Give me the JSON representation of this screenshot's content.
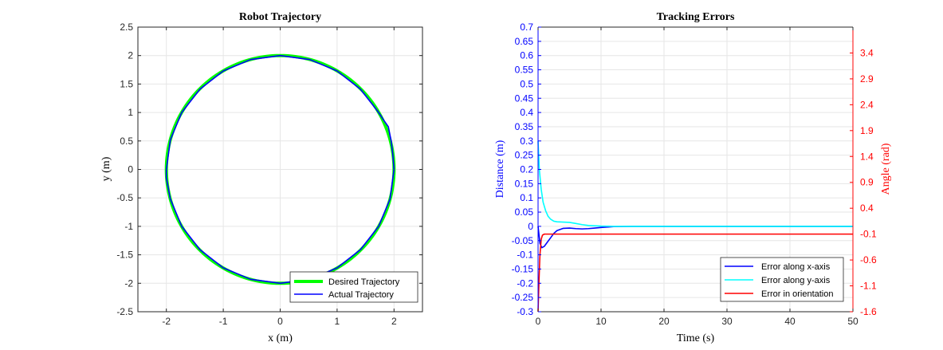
{
  "chart_data": [
    {
      "type": "line",
      "title": "Robot Trajectory",
      "xlabel": "x (m)",
      "ylabel": "y (m)",
      "xlim": [
        -2.5,
        2.5
      ],
      "ylim": [
        -2.5,
        2.5
      ],
      "xticks": [
        -2,
        -1,
        0,
        1,
        2
      ],
      "yticks": [
        -2.5,
        -2,
        -1.5,
        -1,
        -0.5,
        0,
        0.5,
        1,
        1.5,
        2,
        2.5
      ],
      "grid": true,
      "legend_position": "bottom-right",
      "series": [
        {
          "name": "Desired Trajectory",
          "color": "#00ff00",
          "shape": "circle",
          "center": [
            0,
            0
          ],
          "radius": 2
        },
        {
          "name": "Actual Trajectory",
          "color": "#0000ff",
          "x": [
            2.0,
            1.98,
            1.95,
            1.92,
            1.9,
            1.83,
            1.73,
            1.41,
            1.0,
            0.52,
            0.0,
            -0.52,
            -1.0,
            -1.41,
            -1.73,
            -1.93,
            -2.0,
            -2.0,
            -1.93,
            -1.73,
            -1.41,
            -1.0,
            -0.52,
            0.0,
            0.52,
            1.0,
            1.41,
            1.73,
            1.93,
            2.0
          ],
          "y": [
            0.0,
            0.25,
            0.5,
            0.65,
            0.75,
            0.85,
            1.0,
            1.41,
            1.73,
            1.93,
            2.0,
            1.93,
            1.73,
            1.41,
            1.0,
            0.52,
            0.0,
            -0.15,
            -0.52,
            -1.0,
            -1.41,
            -1.73,
            -1.93,
            -2.0,
            -1.93,
            -1.73,
            -1.41,
            -1.0,
            -0.52,
            0.0
          ]
        }
      ]
    },
    {
      "type": "line",
      "title": "Tracking Errors",
      "xlabel": "Time (s)",
      "ylabel": "Distance (m)",
      "ylabel_right": "Angle (rad)",
      "xlim": [
        0,
        50
      ],
      "ylim": [
        -0.3,
        0.7
      ],
      "ylim_right": [
        -1.6,
        3.9
      ],
      "xticks": [
        0,
        10,
        20,
        30,
        40,
        50
      ],
      "yticks": [
        -0.3,
        -0.25,
        -0.2,
        -0.15,
        -0.1,
        -0.05,
        0,
        0.05,
        0.1,
        0.15,
        0.2,
        0.25,
        0.3,
        0.35,
        0.4,
        0.45,
        0.5,
        0.55,
        0.6,
        0.65,
        0.7
      ],
      "yticks_right": [
        -1.6,
        -1.1,
        -0.6,
        -0.1,
        0.4,
        0.9,
        1.4,
        1.9,
        2.4,
        2.9,
        3.4
      ],
      "left_axis_color": "#0000ff",
      "right_axis_color": "#ff0000",
      "grid": true,
      "legend_position": "bottom-right",
      "series": [
        {
          "name": "Error along x-axis",
          "color": "#0000ff",
          "axis": "left",
          "x": [
            0,
            0.3,
            0.6,
            1,
            1.5,
            2,
            2.5,
            3,
            4,
            5,
            6,
            7,
            8,
            9,
            10,
            12,
            15,
            20,
            30,
            40,
            50
          ],
          "y": [
            0,
            -0.06,
            -0.075,
            -0.07,
            -0.055,
            -0.04,
            -0.025,
            -0.015,
            -0.007,
            -0.006,
            -0.008,
            -0.009,
            -0.008,
            -0.006,
            -0.004,
            -0.001,
            0,
            0,
            0,
            0,
            0
          ]
        },
        {
          "name": "Error along y-axis",
          "color": "#00ffff",
          "axis": "left",
          "x": [
            0,
            0.2,
            0.5,
            0.8,
            1.2,
            1.6,
            2,
            2.5,
            3,
            4,
            5,
            6,
            7,
            8,
            9,
            10,
            12,
            15,
            20,
            30,
            40,
            50
          ],
          "y": [
            0.3,
            0.2,
            0.13,
            0.085,
            0.055,
            0.035,
            0.025,
            0.018,
            0.016,
            0.015,
            0.014,
            0.01,
            0.006,
            0.003,
            0.002,
            0.001,
            0,
            0,
            0,
            0,
            0,
            0
          ]
        },
        {
          "name": "Error in orientation",
          "color": "#ff0000",
          "axis": "right",
          "x": [
            0,
            0.15,
            0.3,
            0.5,
            0.7,
            1,
            1.5,
            2,
            3,
            5,
            10,
            20,
            30,
            40,
            50
          ],
          "y": [
            -1.6,
            -1.0,
            -0.5,
            -0.2,
            -0.12,
            -0.1,
            -0.1,
            -0.1,
            -0.1,
            -0.1,
            -0.1,
            -0.1,
            -0.1,
            -0.1,
            -0.1
          ]
        }
      ]
    }
  ]
}
